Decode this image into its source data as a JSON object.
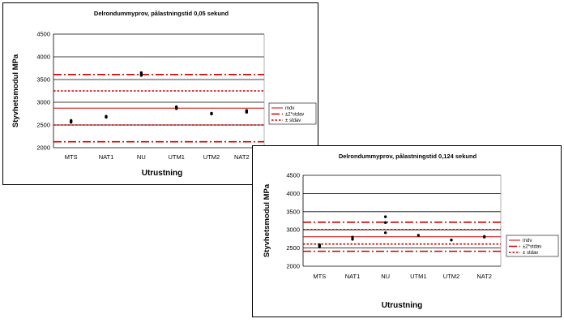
{
  "chart_data": [
    {
      "type": "scatter",
      "title": "Delrondummyprov, pålastningstid 0,05 sekund",
      "xlabel": "Utrustning",
      "ylabel": "Styvhetsmodul MPa",
      "categories": [
        "MTS",
        "NAT1",
        "NU",
        "UTM1",
        "UTM2",
        "NAT2"
      ],
      "ylim": [
        2000,
        4500
      ],
      "yticks": [
        2000,
        2500,
        3000,
        3500,
        4000,
        4500
      ],
      "grid": "horizontal",
      "legend_position": "right",
      "points": [
        {
          "category": "MTS",
          "y": 2560
        },
        {
          "category": "MTS",
          "y": 2580
        },
        {
          "category": "MTS",
          "y": 2600
        },
        {
          "category": "NAT1",
          "y": 2670
        },
        {
          "category": "NAT1",
          "y": 2690
        },
        {
          "category": "NU",
          "y": 3590
        },
        {
          "category": "NU",
          "y": 3620
        },
        {
          "category": "NU",
          "y": 3650
        },
        {
          "category": "UTM1",
          "y": 2860
        },
        {
          "category": "UTM1",
          "y": 2880
        },
        {
          "category": "UTM1",
          "y": 2900
        },
        {
          "category": "UTM2",
          "y": 2740
        },
        {
          "category": "UTM2",
          "y": 2760
        },
        {
          "category": "NAT2",
          "y": 2780
        },
        {
          "category": "NAT2",
          "y": 2800
        },
        {
          "category": "NAT2",
          "y": 2820
        }
      ],
      "reference_lines": [
        {
          "name": "mdv",
          "style": "solid",
          "values": [
            2870
          ]
        },
        {
          "name": "±2*stdav",
          "style": "dashdot",
          "values": [
            2130,
            3610
          ]
        },
        {
          "name": "± stdav",
          "style": "dotted",
          "values": [
            2500,
            3250
          ]
        }
      ],
      "colors": {
        "lines": "#cc0000",
        "points": "#000000",
        "grid": "#000000"
      }
    },
    {
      "type": "scatter",
      "title": "Delrondummyprov, pålastningstid 0,124 sekund",
      "xlabel": "Utrustning",
      "ylabel": "Styvhetsmodul MPa",
      "categories": [
        "MTS",
        "NAT1",
        "NU",
        "UTM1",
        "UTM2",
        "NAT2"
      ],
      "ylim": [
        2000,
        4500
      ],
      "yticks": [
        2000,
        2500,
        3000,
        3500,
        4000,
        4500
      ],
      "grid": "horizontal",
      "legend_position": "right",
      "points": [
        {
          "category": "MTS",
          "y": 2540
        },
        {
          "category": "MTS",
          "y": 2570
        },
        {
          "category": "MTS",
          "y": 2590
        },
        {
          "category": "NAT1",
          "y": 2740
        },
        {
          "category": "NAT1",
          "y": 2800
        },
        {
          "category": "NU",
          "y": 2920
        },
        {
          "category": "NU",
          "y": 3200
        },
        {
          "category": "NU",
          "y": 3360
        },
        {
          "category": "UTM1",
          "y": 2850
        },
        {
          "category": "UTM2",
          "y": 2720
        },
        {
          "category": "NAT2",
          "y": 2800
        },
        {
          "category": "NAT2",
          "y": 2820
        }
      ],
      "reference_lines": [
        {
          "name": "mdv",
          "style": "solid",
          "values": [
            2810
          ]
        },
        {
          "name": "±2*stdav",
          "style": "dashdot",
          "values": [
            2410,
            3210
          ]
        },
        {
          "name": "± stdav",
          "style": "dotted",
          "values": [
            2610,
            3010
          ]
        }
      ],
      "colors": {
        "lines": "#cc0000",
        "points": "#000000",
        "grid": "#000000"
      }
    }
  ]
}
